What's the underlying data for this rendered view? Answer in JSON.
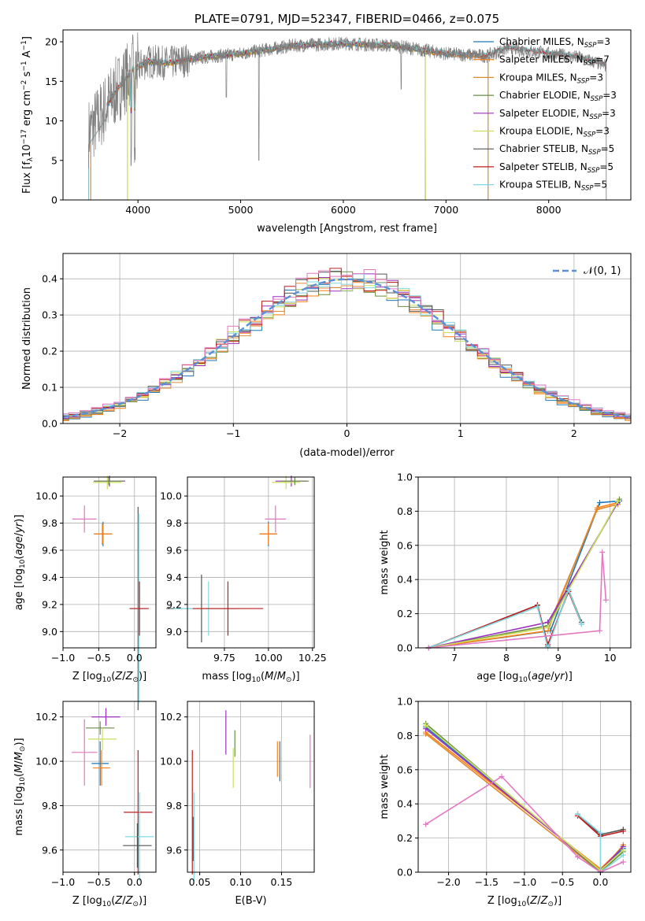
{
  "colors": {
    "Chabrier MILES": "#1f77b4",
    "Salpeter MILES": "#ff7f0e",
    "Kroupa MILES": "#e08a30",
    "Chabrier ELODIE": "#6a8c4a",
    "Salpeter ELODIE": "#9b30c0",
    "Kroupa ELODIE": "#c8e05a",
    "Chabrier STELIB": "#555555",
    "Salpeter STELIB": "#c01c1c",
    "Kroupa STELIB": "#7fd8e0",
    "data": "#7f7f7f",
    "pink": "#e377c2",
    "normal": "#5b8fd6"
  },
  "chart_data": [
    {
      "id": "spectrum",
      "type": "line",
      "title": "PLATE=0791, MJD=52347, FIBERID=0466, z=0.075",
      "xlabel": "wavelength [Angstrom, rest frame]",
      "ylabel": "Flux [f_λ 10^-17 erg cm^-2 s^-1 A^-1]",
      "xlim": [
        3270,
        8800
      ],
      "ylim": [
        0,
        21.5
      ],
      "xticks": [
        4000,
        5000,
        6000,
        7000,
        8000
      ],
      "yticks": [
        0,
        5,
        10,
        15,
        20
      ],
      "legend_position": "right",
      "legend": [
        {
          "label": "Chabrier MILES, N",
          "sub": "SSP",
          "tail": "=3"
        },
        {
          "label": "Salpeter MILES, N",
          "sub": "SSP",
          "tail": "=7"
        },
        {
          "label": "Kroupa MILES, N",
          "sub": "SSP",
          "tail": "=3"
        },
        {
          "label": "Chabrier ELODIE, N",
          "sub": "SSP",
          "tail": "=3"
        },
        {
          "label": "Salpeter ELODIE, N",
          "sub": "SSP",
          "tail": "=3"
        },
        {
          "label": "Kroupa ELODIE, N",
          "sub": "SSP",
          "tail": "=3"
        },
        {
          "label": "Chabrier STELIB, N",
          "sub": "SSP",
          "tail": "=5"
        },
        {
          "label": "Salpeter STELIB, N",
          "sub": "SSP",
          "tail": "=5"
        },
        {
          "label": "Kroupa STELIB, N",
          "sub": "SSP",
          "tail": "=5"
        }
      ],
      "continuum_anchors": [
        [
          3520,
          8.5
        ],
        [
          3650,
          11
        ],
        [
          3800,
          14
        ],
        [
          3950,
          16.5
        ],
        [
          4100,
          17.5
        ],
        [
          4300,
          17.3
        ],
        [
          4600,
          18
        ],
        [
          5000,
          18.5
        ],
        [
          5500,
          19.5
        ],
        [
          6000,
          19.8
        ],
        [
          6500,
          19.5
        ],
        [
          7000,
          18.5
        ],
        [
          7400,
          18.2
        ],
        [
          7600,
          19.2
        ],
        [
          8000,
          18.5
        ],
        [
          8300,
          18.0
        ],
        [
          8550,
          17
        ]
      ]
    },
    {
      "id": "residuals",
      "type": "histogram",
      "xlabel": "(data-model)/error",
      "ylabel": "Normed distribution",
      "xlim": [
        -2.5,
        2.5
      ],
      "ylim": [
        0,
        0.47
      ],
      "xticks": [
        -2,
        -1,
        0,
        1,
        2
      ],
      "yticks": [
        0.0,
        0.1,
        0.2,
        0.3,
        0.4
      ],
      "legend_position": "top-right",
      "legend": "N(0,1)",
      "bin_width": 0.1
    },
    {
      "id": "age_vs_Z",
      "type": "errorbar",
      "xlabel": "Z [log10(Z/Z_sun)]",
      "ylabel": "age [log10(age/yr)]",
      "xlim": [
        -1.0,
        0.3
      ],
      "ylim": [
        8.88,
        10.14
      ],
      "xticks": [
        -1.0,
        -0.5,
        0.0
      ],
      "yticks": [
        9.0,
        9.2,
        9.4,
        9.6,
        9.8,
        10.0
      ],
      "points": [
        {
          "s": "Salpeter ELODIE",
          "x": -0.35,
          "xe": 0.22,
          "y": 10.11,
          "ye": 0.04
        },
        {
          "s": "Kroupa ELODIE",
          "x": -0.38,
          "xe": 0.2,
          "y": 10.1,
          "ye": 0.05
        },
        {
          "s": "Chabrier ELODIE",
          "x": -0.36,
          "xe": 0.21,
          "y": 10.11,
          "ye": 0.03
        },
        {
          "s": "pink",
          "x": -0.7,
          "xe": 0.17,
          "y": 9.83,
          "ye": 0.1
        },
        {
          "s": "Chabrier MILES",
          "x": -0.44,
          "xe": 0.12,
          "y": 9.72,
          "ye": 0.09
        },
        {
          "s": "Kroupa MILES",
          "x": -0.44,
          "xe": 0.13,
          "y": 9.72,
          "ye": 0.07
        },
        {
          "s": "Salpeter MILES",
          "x": -0.45,
          "xe": 0.12,
          "y": 9.72,
          "ye": 0.08
        },
        {
          "s": "Chabrier STELIB",
          "x": 0.05,
          "xe": 0.12,
          "y": 9.17,
          "ye": 0.75
        },
        {
          "s": "Kroupa STELIB",
          "x": 0.06,
          "xe": 0.12,
          "y": 9.17,
          "ye": 0.7
        },
        {
          "s": "Salpeter STELIB",
          "x": 0.07,
          "xe": 0.13,
          "y": 9.17,
          "ye": 0.2
        }
      ]
    },
    {
      "id": "age_vs_mass",
      "type": "errorbar",
      "xlabel": "mass [log10(M/M_sun)]",
      "ylabel": "",
      "xlim": [
        9.54,
        10.26
      ],
      "ylim": [
        8.88,
        10.14
      ],
      "xticks": [
        9.75,
        10.0,
        10.25
      ],
      "xticklabels": [
        "9.75",
        "10.00",
        "10.25"
      ],
      "yticks": [
        9.0,
        9.2,
        9.4,
        9.6,
        9.8,
        10.0
      ],
      "points": [
        {
          "s": "Salpeter ELODIE",
          "x": 10.13,
          "xe": 0.09,
          "y": 10.11,
          "ye": 0.04
        },
        {
          "s": "Kroupa ELODIE",
          "x": 10.1,
          "xe": 0.08,
          "y": 10.1,
          "ye": 0.05
        },
        {
          "s": "Chabrier ELODIE",
          "x": 10.15,
          "xe": 0.08,
          "y": 10.11,
          "ye": 0.03
        },
        {
          "s": "pink",
          "x": 10.04,
          "xe": 0.06,
          "y": 9.83,
          "ye": 0.1
        },
        {
          "s": "Chabrier MILES",
          "x": 10.0,
          "xe": 0.05,
          "y": 9.72,
          "ye": 0.09
        },
        {
          "s": "Kroupa MILES",
          "x": 10.0,
          "xe": 0.05,
          "y": 9.72,
          "ye": 0.07
        },
        {
          "s": "Salpeter MILES",
          "x": 10.0,
          "xe": 0.05,
          "y": 9.72,
          "ye": 0.08
        },
        {
          "s": "Chabrier STELIB",
          "x": 9.62,
          "xe": 0.2,
          "y": 9.17,
          "ye": 0.25
        },
        {
          "s": "Kroupa STELIB",
          "x": 9.66,
          "xe": 0.2,
          "y": 9.17,
          "ye": 0.2
        },
        {
          "s": "Salpeter STELIB",
          "x": 9.77,
          "xe": 0.2,
          "y": 9.17,
          "ye": 0.2
        }
      ]
    },
    {
      "id": "massweight_vs_age",
      "type": "line",
      "xlabel": "age [log10(age/yr)]",
      "ylabel": "mass weight",
      "xlim": [
        6.3,
        10.4
      ],
      "ylim": [
        0,
        1.0
      ],
      "xticks": [
        7,
        8,
        9,
        10
      ],
      "yticks": [
        0.0,
        0.2,
        0.4,
        0.6,
        0.8,
        1.0
      ],
      "series": [
        {
          "s": "Chabrier MILES",
          "x": [
            6.5,
            8.85,
            9.8,
            10.18
          ],
          "y": [
            0.0,
            0.1,
            0.85,
            0.86
          ]
        },
        {
          "s": "Salpeter MILES",
          "x": [
            6.5,
            8.8,
            9.75,
            10.15
          ],
          "y": [
            0.0,
            0.1,
            0.82,
            0.85
          ]
        },
        {
          "s": "Kroupa MILES",
          "x": [
            6.5,
            8.8,
            9.75,
            10.15
          ],
          "y": [
            0.0,
            0.12,
            0.81,
            0.84
          ]
        },
        {
          "s": "Chabrier ELODIE",
          "x": [
            6.5,
            8.8,
            10.18
          ],
          "y": [
            0.0,
            0.13,
            0.87
          ]
        },
        {
          "s": "Salpeter ELODIE",
          "x": [
            6.5,
            8.8,
            10.15
          ],
          "y": [
            0.0,
            0.15,
            0.85
          ]
        },
        {
          "s": "Kroupa ELODIE",
          "x": [
            6.5,
            8.8,
            10.15
          ],
          "y": [
            0.0,
            0.12,
            0.86
          ]
        },
        {
          "s": "Chabrier STELIB",
          "x": [
            6.5,
            8.6,
            8.8,
            9.2,
            9.45
          ],
          "y": [
            0.0,
            0.25,
            0.01,
            0.34,
            0.15
          ]
        },
        {
          "s": "Salpeter STELIB",
          "x": [
            6.5,
            8.6,
            8.8,
            9.2,
            9.45
          ],
          "y": [
            0.0,
            0.25,
            0.02,
            0.33,
            0.14
          ]
        },
        {
          "s": "Kroupa STELIB",
          "x": [
            6.5,
            8.6,
            8.8,
            9.2,
            9.45
          ],
          "y": [
            0.0,
            0.24,
            0.0,
            0.34,
            0.14
          ]
        },
        {
          "s": "pink",
          "x": [
            6.5,
            9.8,
            9.85,
            9.92
          ],
          "y": [
            0.0,
            0.1,
            0.56,
            0.28
          ]
        }
      ]
    },
    {
      "id": "mass_vs_Z",
      "type": "errorbar",
      "xlabel": "Z [log10(Z/Z_sun)]",
      "ylabel": "mass [log10(M/M_sun)]",
      "xlim": [
        -1.0,
        0.3
      ],
      "ylim": [
        9.5,
        10.27
      ],
      "xticks": [
        -1.0,
        -0.5,
        0.0
      ],
      "yticks": [
        9.6,
        9.8,
        10.0,
        10.2
      ],
      "points": [
        {
          "s": "Salpeter ELODIE",
          "x": -0.4,
          "xe": 0.2,
          "y": 10.2,
          "ye": 0.04
        },
        {
          "s": "Chabrier ELODIE",
          "x": -0.48,
          "xe": 0.2,
          "y": 10.15,
          "ye": 0.03
        },
        {
          "s": "Kroupa ELODIE",
          "x": -0.45,
          "xe": 0.2,
          "y": 10.1,
          "ye": 0.05
        },
        {
          "s": "pink",
          "x": -0.7,
          "xe": 0.18,
          "y": 10.04,
          "ye": 0.15
        },
        {
          "s": "Chabrier MILES",
          "x": -0.48,
          "xe": 0.12,
          "y": 9.99,
          "ye": 0.1
        },
        {
          "s": "Salpeter MILES",
          "x": -0.46,
          "xe": 0.12,
          "y": 9.97,
          "ye": 0.08
        },
        {
          "s": "Salpeter STELIB",
          "x": 0.05,
          "xe": 0.2,
          "y": 9.77,
          "ye": 0.28
        },
        {
          "s": "Kroupa STELIB",
          "x": 0.07,
          "xe": 0.2,
          "y": 9.66,
          "ye": 0.2
        },
        {
          "s": "Chabrier STELIB",
          "x": 0.04,
          "xe": 0.2,
          "y": 9.62,
          "ye": 0.1
        }
      ]
    },
    {
      "id": "mass_vs_EBV",
      "type": "errorbar",
      "xlabel": "E(B-V)",
      "ylabel": "",
      "xlim": [
        0.035,
        0.19
      ],
      "ylim": [
        9.5,
        10.27
      ],
      "xticks": [
        0.05,
        0.1,
        0.15
      ],
      "xticklabels": [
        "0.05",
        "0.10",
        "0.15"
      ],
      "yticks": [
        9.6,
        9.8,
        10.0,
        10.2
      ],
      "points": [
        {
          "s": "Salpeter STELIB",
          "x": 0.041,
          "y": 9.77,
          "ye": 0.28
        },
        {
          "s": "Kroupa STELIB",
          "x": 0.043,
          "y": 9.66,
          "ye": 0.2
        },
        {
          "s": "Chabrier STELIB",
          "x": 0.042,
          "y": 9.65,
          "ye": 0.1
        },
        {
          "s": "Salpeter ELODIE",
          "x": 0.082,
          "y": 10.13,
          "ye": 0.1
        },
        {
          "s": "Kroupa ELODIE",
          "x": 0.091,
          "y": 9.97,
          "ye": 0.09
        },
        {
          "s": "Chabrier ELODIE",
          "x": 0.093,
          "y": 10.08,
          "ye": 0.06
        },
        {
          "s": "Salpeter MILES",
          "x": 0.145,
          "y": 10.01,
          "ye": 0.08
        },
        {
          "s": "Chabrier MILES",
          "x": 0.148,
          "y": 10.0,
          "ye": 0.09
        },
        {
          "s": "pink",
          "x": 0.185,
          "y": 10.0,
          "ye": 0.12
        }
      ]
    },
    {
      "id": "massweight_vs_Z",
      "type": "line",
      "xlabel": "Z [log10(Z/Z_sun)]",
      "ylabel": "mass weight",
      "xlim": [
        -2.4,
        0.4
      ],
      "ylim": [
        0,
        1.0
      ],
      "xticks": [
        -2.0,
        -1.5,
        -1.0,
        -0.5,
        0.0
      ],
      "yticks": [
        0.0,
        0.2,
        0.4,
        0.6,
        0.8,
        1.0
      ],
      "series": [
        {
          "s": "Chabrier MILES",
          "x": [
            -2.3,
            0.0,
            0.3
          ],
          "y": [
            0.85,
            0.01,
            0.14
          ]
        },
        {
          "s": "Salpeter MILES",
          "x": [
            -2.3,
            0.0,
            0.3
          ],
          "y": [
            0.82,
            0.02,
            0.15
          ]
        },
        {
          "s": "Kroupa MILES",
          "x": [
            -2.3,
            0.0,
            0.3
          ],
          "y": [
            0.81,
            0.0,
            0.16
          ]
        },
        {
          "s": "Chabrier ELODIE",
          "x": [
            -2.3,
            0.0,
            0.3
          ],
          "y": [
            0.87,
            0.0,
            0.12
          ]
        },
        {
          "s": "Salpeter ELODIE",
          "x": [
            -2.3,
            0.0,
            0.3
          ],
          "y": [
            0.84,
            0.01,
            0.15
          ]
        },
        {
          "s": "Kroupa ELODIE",
          "x": [
            -2.3,
            0.0,
            0.3
          ],
          "y": [
            0.86,
            0.01,
            0.13
          ]
        },
        {
          "s": "Chabrier STELIB",
          "x": [
            -0.3,
            0.0,
            0.3
          ],
          "y": [
            0.34,
            0.22,
            0.25
          ]
        },
        {
          "s": "Salpeter STELIB",
          "x": [
            -0.3,
            0.0,
            0.3
          ],
          "y": [
            0.33,
            0.21,
            0.24
          ]
        },
        {
          "s": "Kroupa STELIB",
          "x": [
            -0.3,
            0.0,
            0.0,
            0.3
          ],
          "y": [
            0.34,
            0.23,
            0.0,
            0.1
          ]
        },
        {
          "s": "pink",
          "x": [
            -2.3,
            -1.3,
            -0.3,
            0.0,
            0.3
          ],
          "y": [
            0.28,
            0.56,
            0.09,
            0.0,
            0.06
          ]
        }
      ]
    }
  ]
}
